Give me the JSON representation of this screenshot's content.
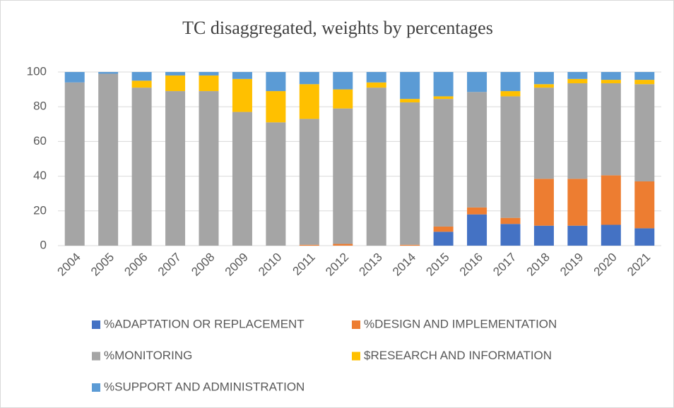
{
  "chart_data": {
    "type": "stacked_bar",
    "title": "TC disaggregated, weights by percentages",
    "categories": [
      "2004",
      "2005",
      "2006",
      "2007",
      "2008",
      "2009",
      "2010",
      "2011",
      "2012",
      "2013",
      "2014",
      "2015",
      "2016",
      "2017",
      "2018",
      "2019",
      "2020",
      "2021"
    ],
    "series": [
      {
        "name": "%ADAPTATION OR REPLACEMENT",
        "color": "#4472c4",
        "values": [
          0,
          0,
          0,
          0,
          0,
          0,
          0,
          0,
          0,
          0,
          0,
          8,
          18,
          12.5,
          11.5,
          11.5,
          12,
          10
        ]
      },
      {
        "name": "%DESIGN AND IMPLEMENTATION",
        "color": "#ed7d31",
        "values": [
          0,
          0,
          0,
          0,
          0,
          0,
          0,
          0.5,
          1,
          0,
          0.5,
          3,
          4,
          3.5,
          27,
          27,
          28.5,
          27
        ]
      },
      {
        "name": "%MONITORING",
        "color": "#a5a5a5",
        "values": [
          94,
          99,
          91,
          89,
          89,
          77,
          71,
          72.5,
          78,
          91,
          82,
          73.5,
          66.5,
          70,
          52.5,
          55,
          53,
          56
        ]
      },
      {
        "name": "$RESEARCH AND INFORMATION",
        "color": "#ffc000",
        "values": [
          0,
          0,
          4,
          9,
          9,
          19,
          18,
          20,
          11,
          3,
          2,
          1.5,
          0,
          3,
          2,
          2.5,
          2,
          2.5
        ]
      },
      {
        "name": "%SUPPORT AND ADMINISTRATION",
        "color": "#5b9bd5",
        "values": [
          6,
          1,
          5,
          2,
          2,
          4,
          11,
          7,
          10,
          6,
          15.5,
          14,
          11.5,
          11,
          7,
          4,
          4.5,
          4.5
        ]
      }
    ],
    "ylim": [
      0,
      100
    ],
    "yticks": [
      0,
      20,
      40,
      60,
      80,
      100
    ],
    "grid": true,
    "legend": "bottom"
  }
}
